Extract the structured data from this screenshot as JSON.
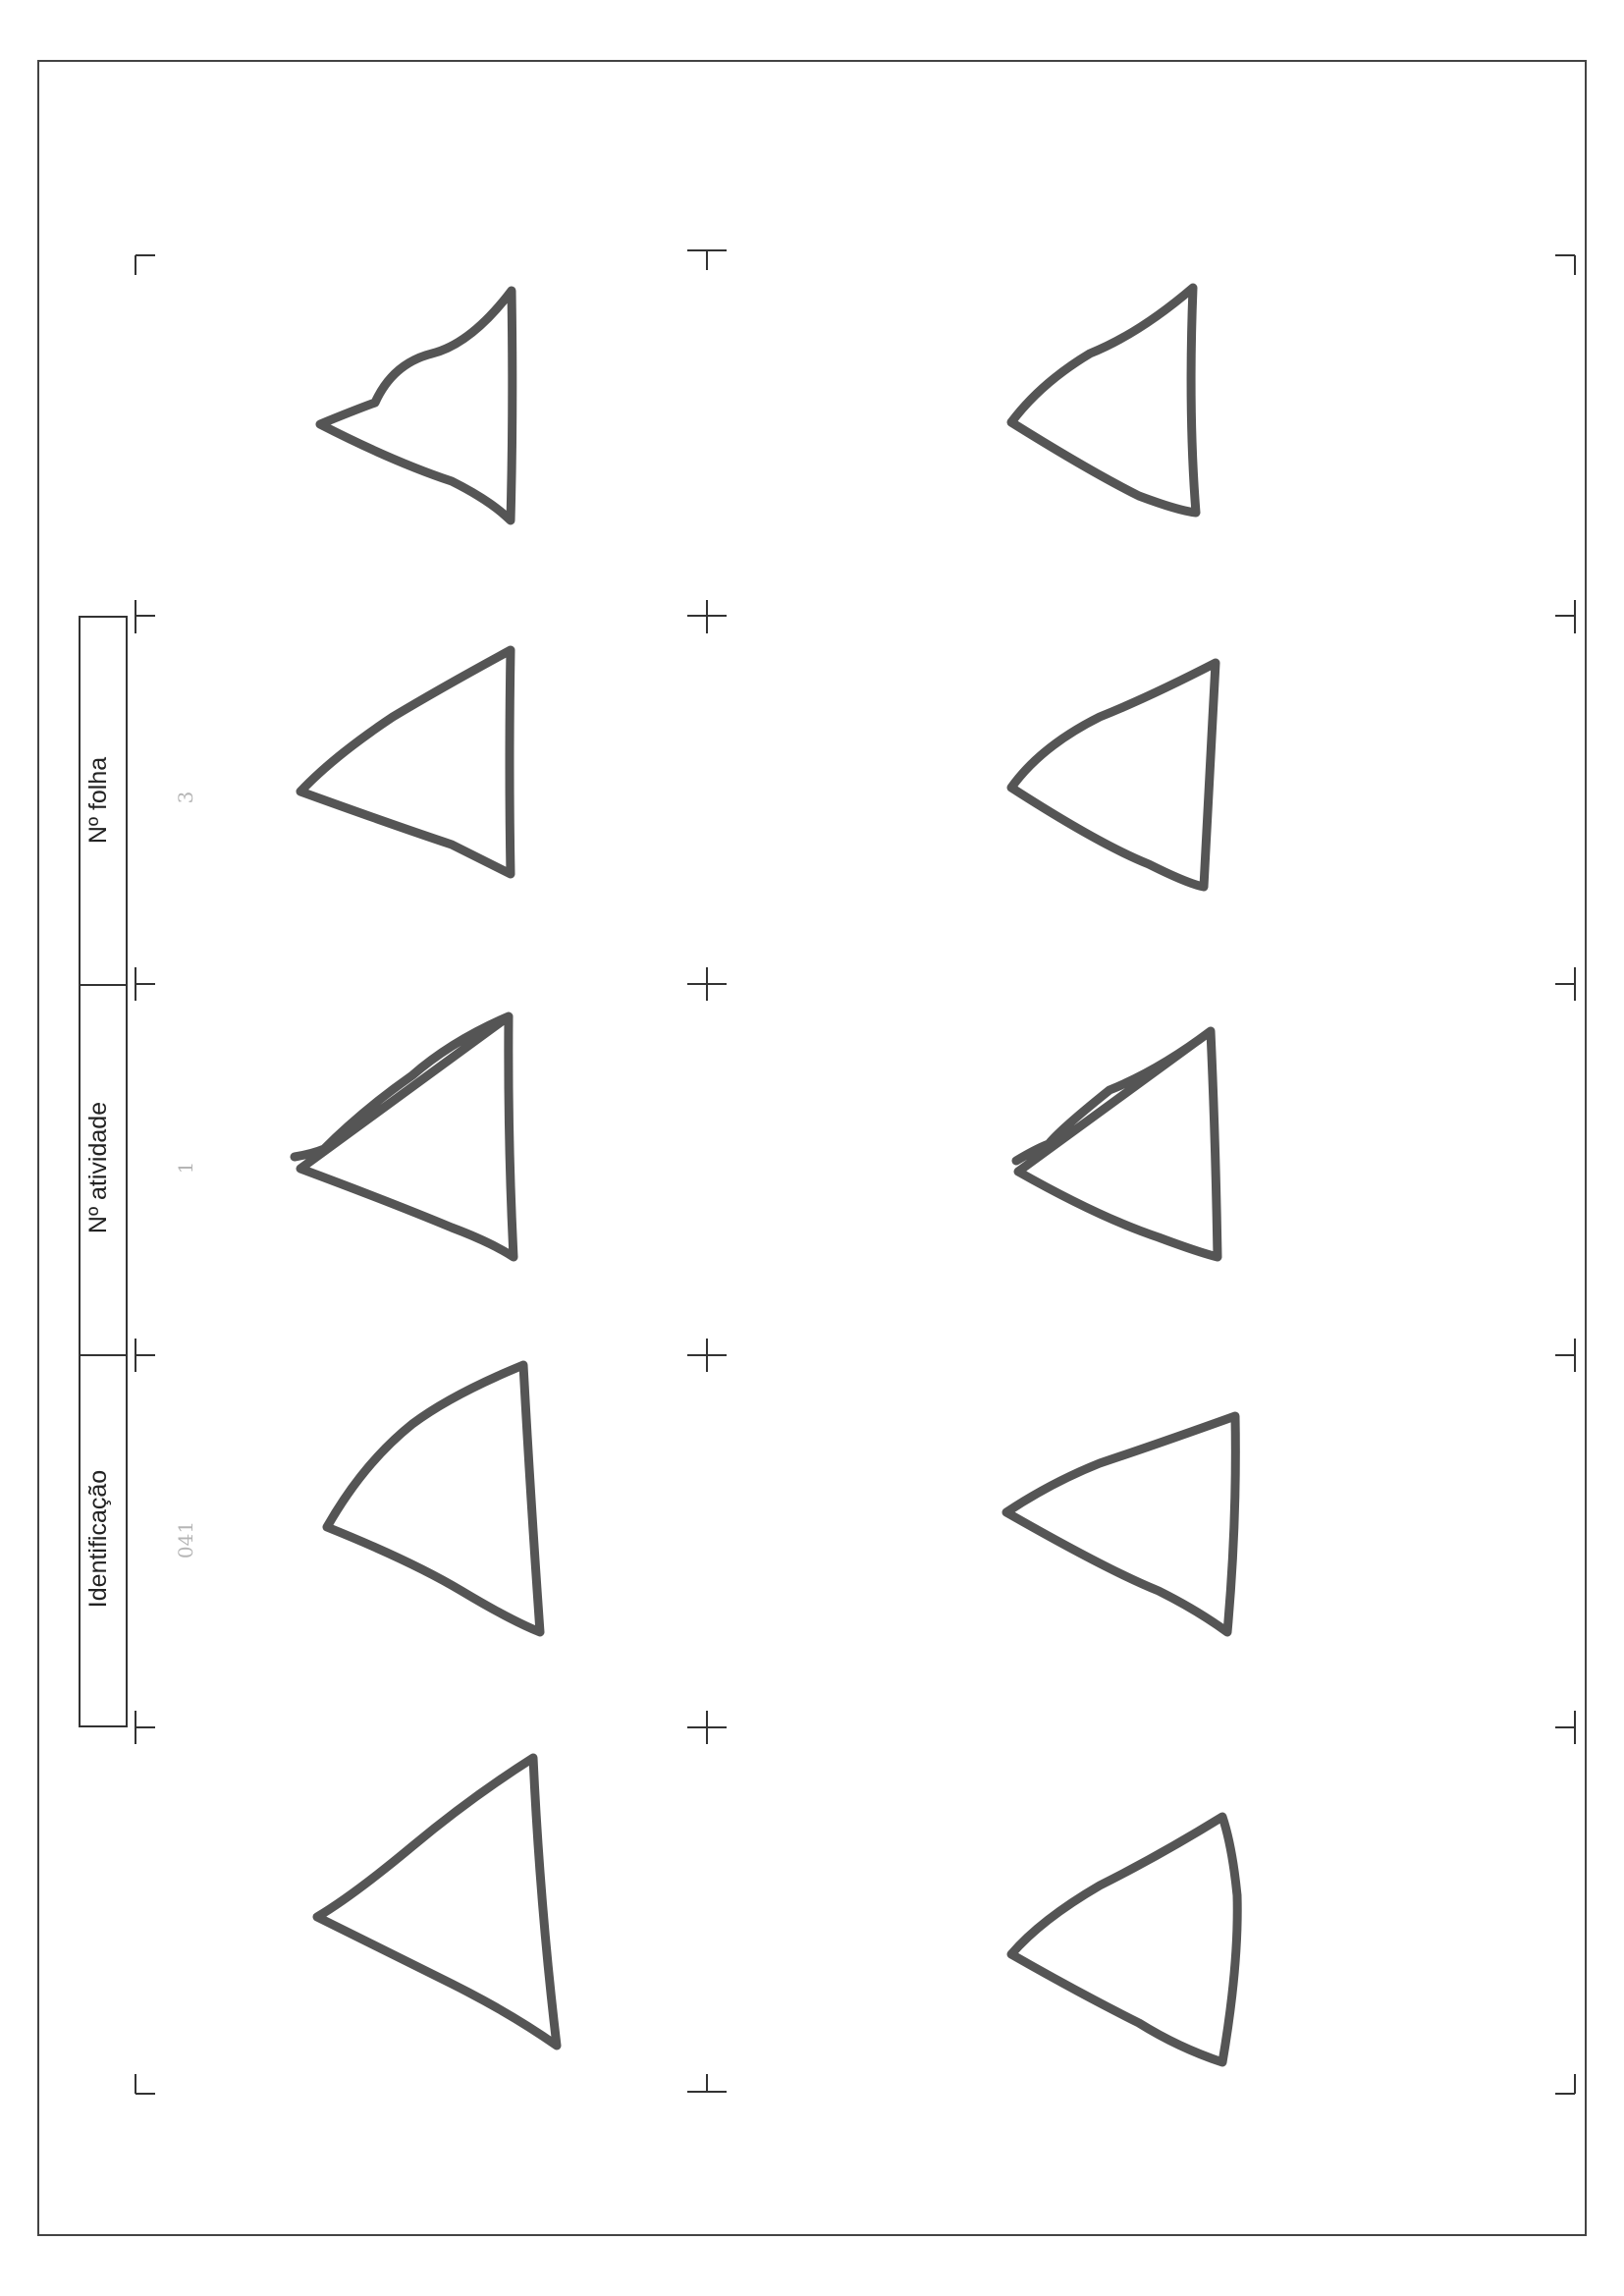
{
  "header_box": {
    "fields": [
      {
        "label": "Identificação",
        "value": "041"
      },
      {
        "label": "Nº atividade",
        "value": "1"
      },
      {
        "label": "Nº folha",
        "value": "3"
      }
    ]
  },
  "drawing": {
    "shape": "triangle",
    "count": 10,
    "stroke_color": "#555555"
  }
}
